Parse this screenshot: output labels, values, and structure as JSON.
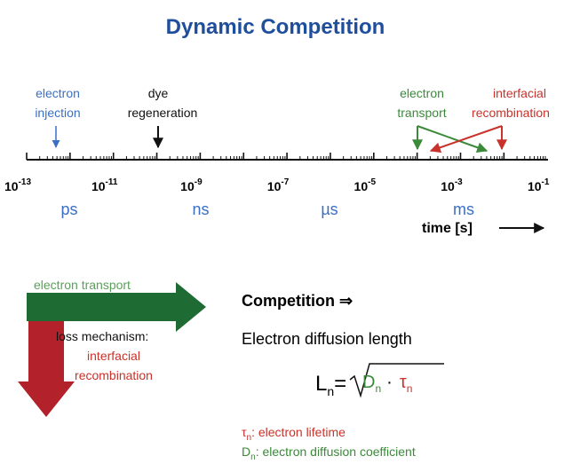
{
  "title": "Dynamic Competition",
  "timeline": {
    "events": [
      {
        "lines": [
          "electron",
          "injection"
        ]
      },
      {
        "lines": [
          "dye",
          "regeneration"
        ]
      },
      {
        "lines": [
          "electron",
          "transport"
        ]
      },
      {
        "lines": [
          "interfacial",
          "recombination"
        ]
      }
    ],
    "ticks": [
      {
        "base": "10",
        "exp": "-13"
      },
      {
        "base": "10",
        "exp": "-11"
      },
      {
        "base": "10",
        "exp": "-9"
      },
      {
        "base": "10",
        "exp": "-7"
      },
      {
        "base": "10",
        "exp": "-5"
      },
      {
        "base": "10",
        "exp": "-3"
      },
      {
        "base": "10",
        "exp": "-1"
      }
    ],
    "units": [
      "ps",
      "ns",
      "µs",
      "ms"
    ],
    "axis_label": "time [s]"
  },
  "transport_arrow": "electron transport",
  "loss": {
    "lines": [
      "loss mechanism:",
      "interfacial",
      "recombination"
    ]
  },
  "competition": "Competition ⇒",
  "diffusion_title": "Electron diffusion length",
  "formula": {
    "l": "L",
    "l_sub": "n",
    "eq": "=",
    "d": "D",
    "d_sub": "n",
    "dot": "·",
    "tau": "τ",
    "tau_sub": "n"
  },
  "legend": [
    {
      "symbol": "τ",
      "sub": "n",
      "text": ": electron lifetime"
    },
    {
      "symbol": "D",
      "sub": "n",
      "text": ": electron diffusion coefficient"
    }
  ]
}
